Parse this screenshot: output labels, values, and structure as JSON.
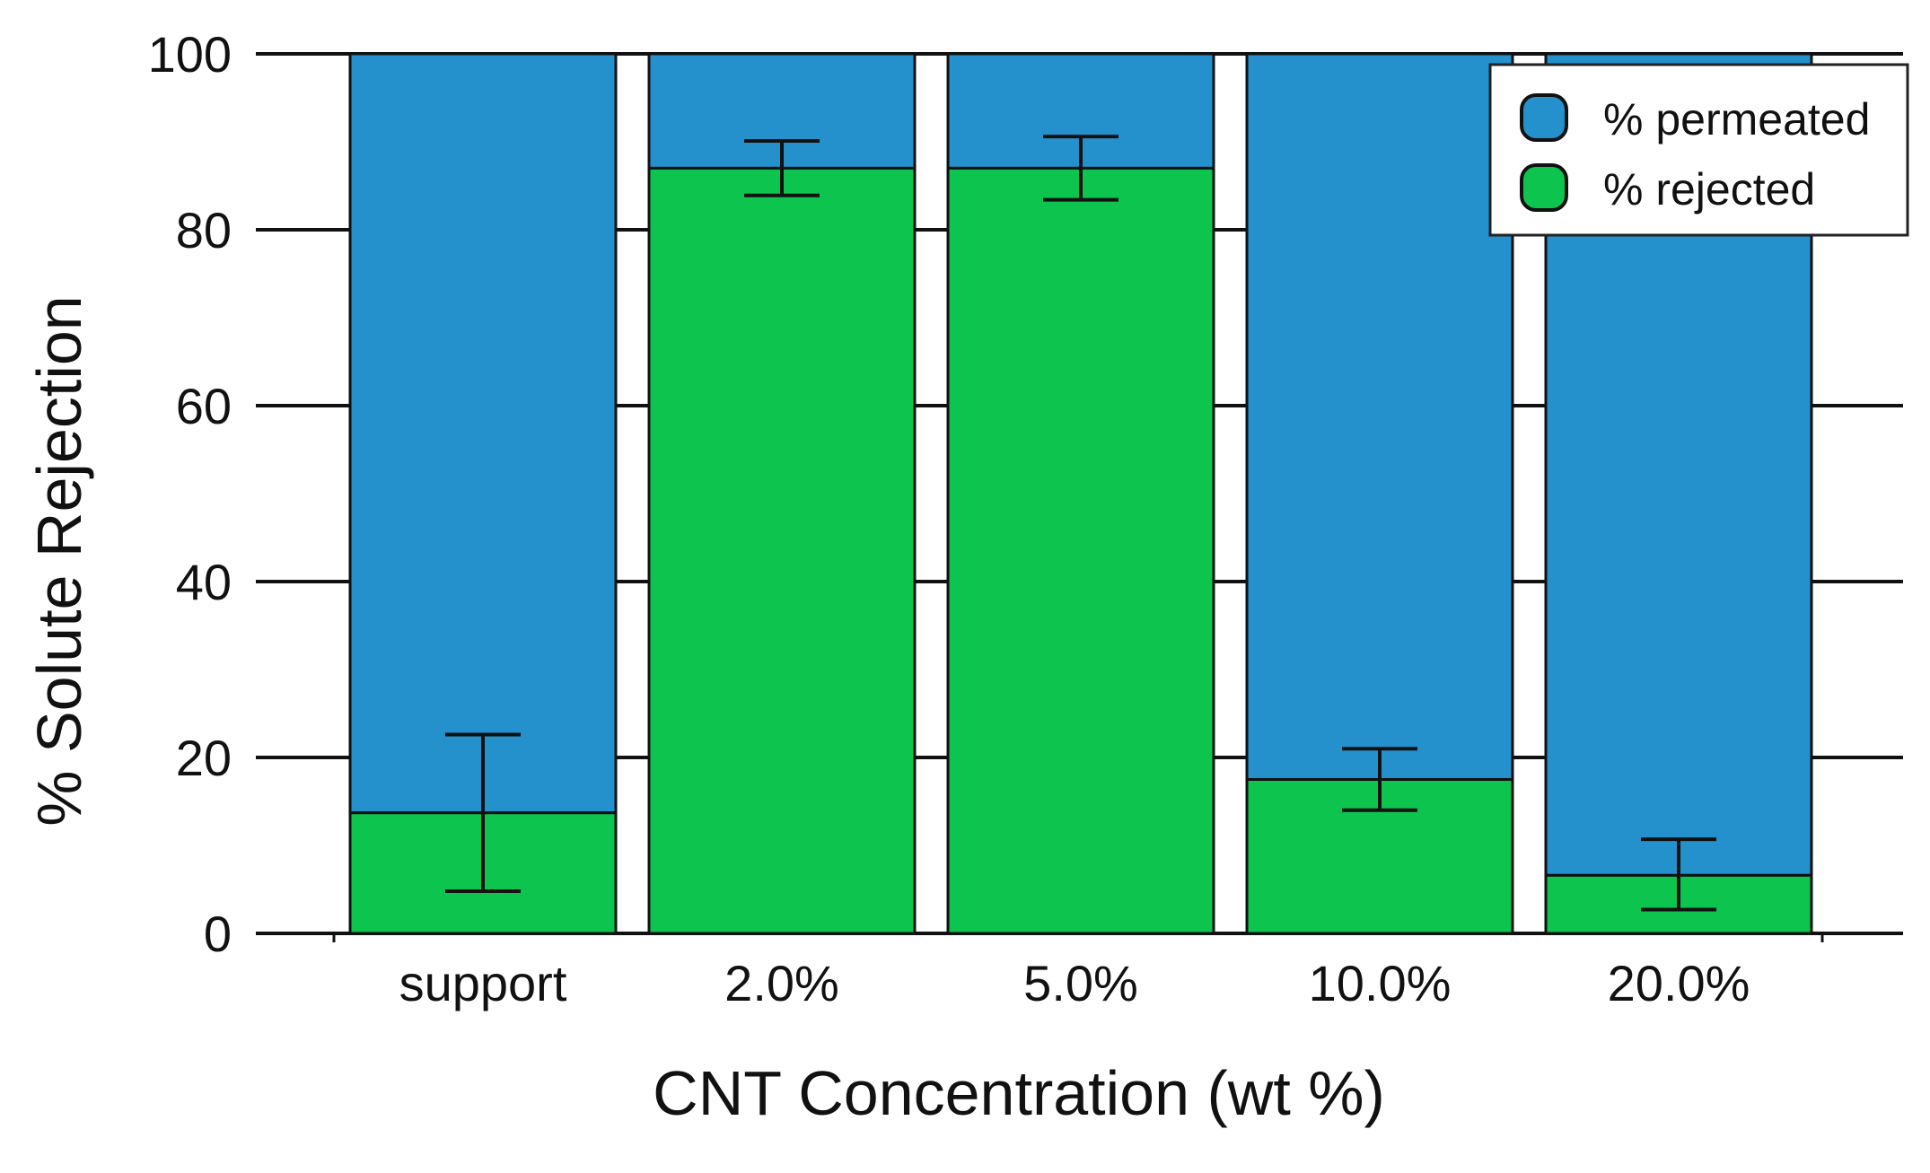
{
  "chart_data": {
    "type": "bar",
    "stacked": true,
    "title": "",
    "xlabel": "CNT Concentration (wt %)",
    "ylabel": "% Solute Rejection",
    "ylim": [
      0,
      100
    ],
    "yticks": [
      0,
      20,
      40,
      60,
      80,
      100
    ],
    "grid": true,
    "legend_position": "top-right",
    "categories": [
      "support",
      "2.0%",
      "5.0%",
      "10.0%",
      "20.0%"
    ],
    "series": [
      {
        "name": "% rejected",
        "values": [
          13.7,
          87.0,
          87.0,
          17.5,
          6.6
        ],
        "color": "#0cc44e"
      },
      {
        "name": "% permeated",
        "values": [
          86.3,
          13.0,
          13.0,
          82.5,
          93.4
        ],
        "color": "#2490cc"
      }
    ],
    "error_bars": {
      "series": "% rejected",
      "low": [
        4.8,
        83.9,
        83.4,
        14.0,
        2.7
      ],
      "high": [
        22.6,
        90.1,
        90.6,
        21.0,
        10.7
      ]
    }
  }
}
